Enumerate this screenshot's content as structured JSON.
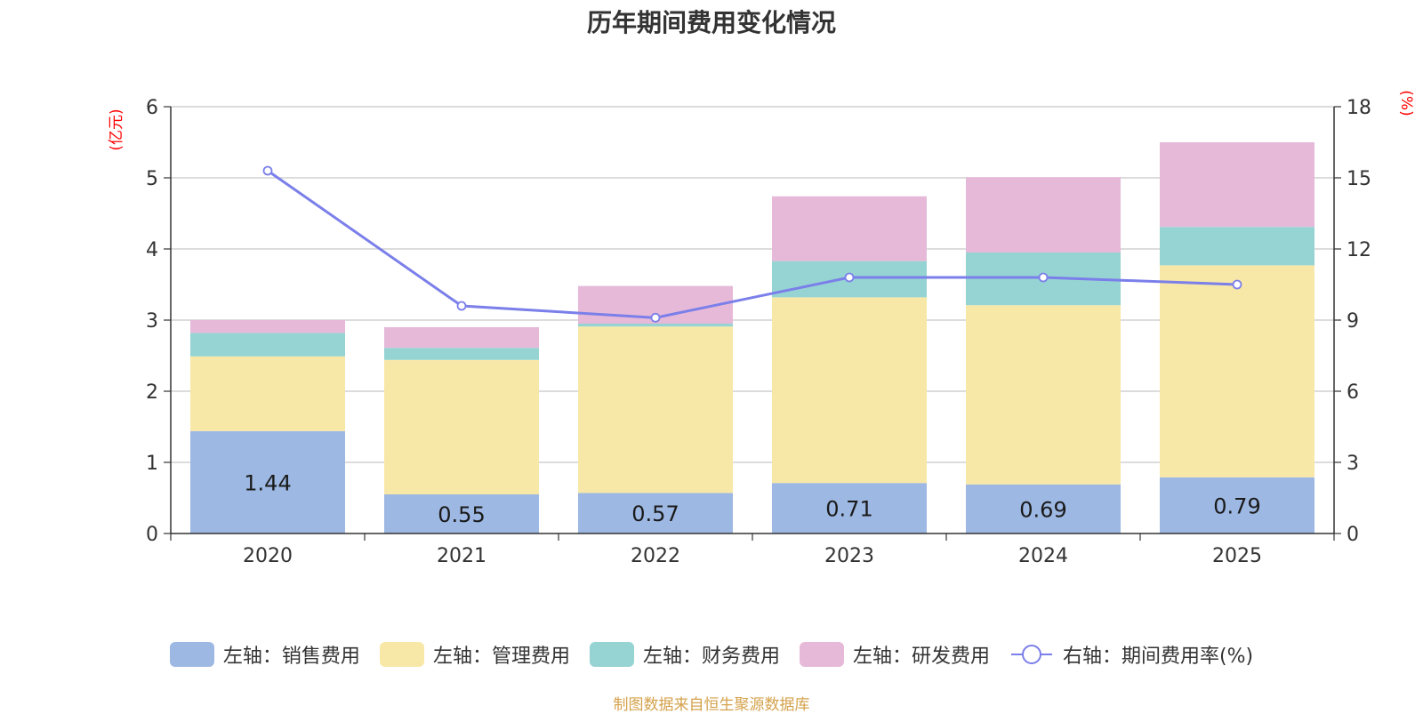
{
  "title": "历年期间费用变化情况",
  "source": "制图数据来自恒生聚源数据库",
  "colors": {
    "sales": "#9db8e2",
    "admin": "#f8e8a8",
    "finance": "#96d4d3",
    "rd": "#e6b9d8",
    "rate": "#7b7fe9",
    "axis_unit": "#ff0000",
    "grid": "#c8c8c8",
    "text": "#333333"
  },
  "chart_data": {
    "type": "bar",
    "stacked": true,
    "title": "历年期间费用变化情况",
    "categories": [
      "2020",
      "2021",
      "2022",
      "2023",
      "2024",
      "2025"
    ],
    "left_axis": {
      "unit_label": "(亿元)",
      "ylim": [
        0,
        6
      ],
      "ticks": [
        "0",
        "1",
        "2",
        "3",
        "4",
        "5",
        "6"
      ]
    },
    "right_axis": {
      "unit_label": "(%)",
      "ylim": [
        0,
        18
      ],
      "ticks": [
        "0",
        "3",
        "6",
        "9",
        "12",
        "15",
        "18"
      ]
    },
    "series": [
      {
        "key": "sales",
        "name": "左轴：销售费用",
        "axis": "left",
        "type": "bar",
        "values": [
          1.44,
          0.55,
          0.57,
          0.71,
          0.69,
          0.79
        ],
        "labels": [
          "1.44",
          "0.55",
          "0.57",
          "0.71",
          "0.69",
          "0.79"
        ]
      },
      {
        "key": "admin",
        "name": "左轴：管理费用",
        "axis": "left",
        "type": "bar",
        "values": [
          1.05,
          1.89,
          2.34,
          2.61,
          2.52,
          2.98
        ]
      },
      {
        "key": "finance",
        "name": "左轴：财务费用",
        "axis": "left",
        "type": "bar",
        "values": [
          0.33,
          0.17,
          0.04,
          0.51,
          0.74,
          0.54
        ]
      },
      {
        "key": "rd",
        "name": "左轴：研发费用",
        "axis": "left",
        "type": "bar",
        "values": [
          0.18,
          0.29,
          0.53,
          0.91,
          1.06,
          1.19
        ]
      },
      {
        "key": "rate",
        "name": "右轴：期间费用率(%)",
        "axis": "right",
        "type": "line",
        "values": [
          15.3,
          9.6,
          9.1,
          10.8,
          10.8,
          10.5
        ]
      }
    ]
  }
}
